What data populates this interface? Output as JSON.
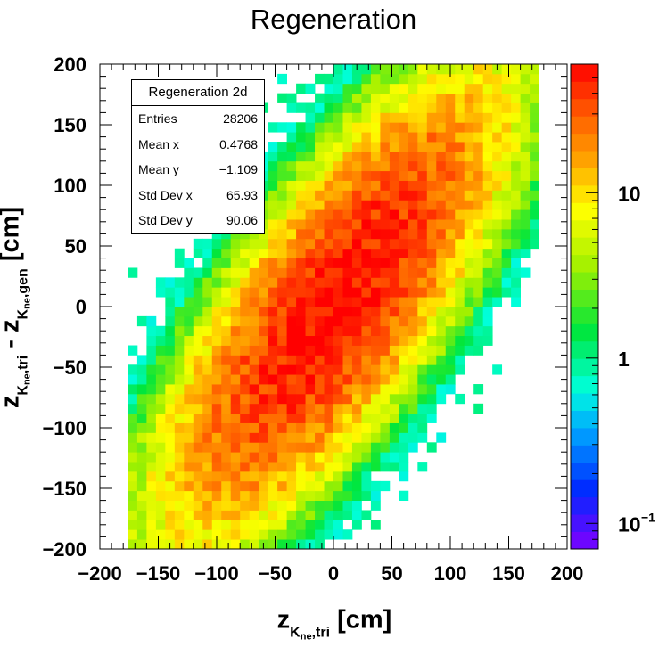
{
  "chart_data": {
    "type": "heatmap",
    "title": "Regeneration",
    "xlabel": {
      "main": "z",
      "sub": "K",
      "subsub": "ne",
      "tail": ",tri",
      "unit": " [cm]"
    },
    "ylabel": {
      "main1": "z",
      "sub1": "K",
      "subsub1": "ne",
      "tail1": ",tri",
      "minus": " - ",
      "main2": "z",
      "sub2": "K",
      "subsub2": "ne",
      "tail2": ",gen",
      "unit": " [cm]"
    },
    "xlim": [
      -200,
      200
    ],
    "ylim": [
      -200,
      200
    ],
    "x_ticks": [
      "−200",
      "−150",
      "−100",
      "−50",
      "0",
      "50",
      "100",
      "150",
      "200"
    ],
    "y_ticks": [
      "−200",
      "−150",
      "−100",
      "−50",
      "0",
      "50",
      "100",
      "150",
      "200"
    ],
    "bins": 50,
    "z_scale": "log",
    "z_range": [
      0.07,
      60
    ],
    "colorbar_ticks": [
      "10",
      "1",
      "10"
    ],
    "colorbar_sup": "−1",
    "distribution": {
      "peak": 55,
      "center": [
        0,
        0
      ],
      "sigma_x": 65.93,
      "sigma_y": 90.06,
      "correlation": 0.78,
      "x_range": [
        -175,
        175
      ]
    },
    "stats": {
      "name": "Regeneration 2d",
      "rows": [
        {
          "label": "Entries",
          "value": "28206"
        },
        {
          "label": "Mean x",
          "value": "0.4768"
        },
        {
          "label": "Mean y",
          "value": "−1.109"
        },
        {
          "label": "Std Dev x",
          "value": "65.93"
        },
        {
          "label": "Std Dev y",
          "value": "90.06"
        }
      ]
    }
  }
}
